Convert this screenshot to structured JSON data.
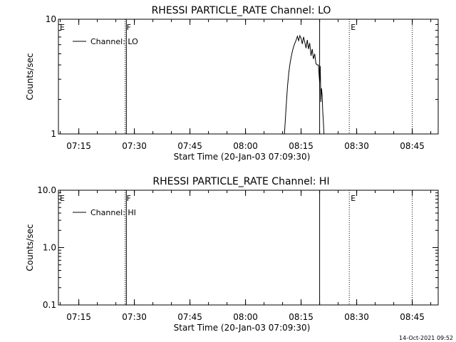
{
  "footer": {
    "timestamp": "14-Oct-2021 09:52"
  },
  "chart_data": [
    {
      "type": "line",
      "title": "RHESSI PARTICLE_RATE Channel: LO",
      "xlabel": "Start Time (20-Jan-03 07:09:30)",
      "ylabel": "Counts/sec",
      "yscale": "log",
      "ylim": [
        1,
        10
      ],
      "xlim": [
        "07:09:30",
        "08:52:00"
      ],
      "xticks": [
        "07:15",
        "07:30",
        "07:45",
        "08:00",
        "08:15",
        "08:30",
        "08:45"
      ],
      "yticks": [
        "1",
        "10"
      ],
      "legend": {
        "position": "top-left",
        "entries": [
          "Channel: LO"
        ]
      },
      "grid": false,
      "event_markers": [
        {
          "label": "E",
          "time": "07:09:30",
          "style": "solid"
        },
        {
          "label": "F",
          "time": "07:27:30",
          "style": "dotted"
        },
        {
          "label": "",
          "time": "07:27:50",
          "style": "solid"
        },
        {
          "label": "",
          "time": "08:20:00",
          "style": "solid"
        },
        {
          "label": "E",
          "time": "08:28:00",
          "style": "dotted"
        },
        {
          "label": "",
          "time": "08:45:00",
          "style": "dotted"
        }
      ],
      "series": [
        {
          "name": "Channel: LO",
          "x": [
            "08:10:30",
            "08:11:00",
            "08:11:20",
            "08:11:40",
            "08:12:00",
            "08:12:20",
            "08:12:40",
            "08:13:00",
            "08:13:20",
            "08:13:40",
            "08:14:00",
            "08:14:20",
            "08:14:40",
            "08:15:00",
            "08:15:20",
            "08:15:40",
            "08:16:00",
            "08:16:20",
            "08:16:40",
            "08:17:00",
            "08:17:20",
            "08:17:40",
            "08:18:00",
            "08:18:20",
            "08:18:40",
            "08:19:00",
            "08:19:20",
            "08:19:40",
            "08:20:00",
            "08:20:10",
            "08:20:20",
            "08:20:30",
            "08:20:40",
            "08:20:50",
            "08:21:00",
            "08:21:10"
          ],
          "values": [
            1.0,
            1.8,
            2.6,
            3.4,
            4.1,
            4.7,
            5.3,
            5.8,
            6.2,
            6.6,
            7.1,
            6.5,
            7.2,
            6.8,
            6.1,
            7.0,
            6.3,
            5.6,
            6.6,
            5.5,
            6.2,
            4.8,
            5.5,
            4.5,
            5.0,
            4.1,
            4.0,
            4.0,
            2.8,
            3.9,
            1.9,
            2.5,
            2.2,
            1.6,
            1.3,
            1.0
          ]
        }
      ]
    },
    {
      "type": "line",
      "title": "RHESSI PARTICLE_RATE Channel: HI",
      "xlabel": "Start Time (20-Jan-03 07:09:30)",
      "ylabel": "Counts/sec",
      "yscale": "log",
      "ylim": [
        0.1,
        10
      ],
      "xlim": [
        "07:09:30",
        "08:52:00"
      ],
      "xticks": [
        "07:15",
        "07:30",
        "07:45",
        "08:00",
        "08:15",
        "08:30",
        "08:45"
      ],
      "yticks": [
        "0.1",
        "1.0",
        "10.0"
      ],
      "legend": {
        "position": "top-left",
        "entries": [
          "Channel: HI"
        ]
      },
      "grid": false,
      "event_markers": [
        {
          "label": "E",
          "time": "07:09:30",
          "style": "solid"
        },
        {
          "label": "F",
          "time": "07:27:30",
          "style": "dotted"
        },
        {
          "label": "",
          "time": "07:27:50",
          "style": "solid"
        },
        {
          "label": "",
          "time": "08:20:00",
          "style": "solid"
        },
        {
          "label": "E",
          "time": "08:28:00",
          "style": "dotted"
        },
        {
          "label": "",
          "time": "08:45:00",
          "style": "dotted"
        }
      ],
      "series": [
        {
          "name": "Channel: HI",
          "x": [],
          "values": []
        }
      ]
    }
  ]
}
